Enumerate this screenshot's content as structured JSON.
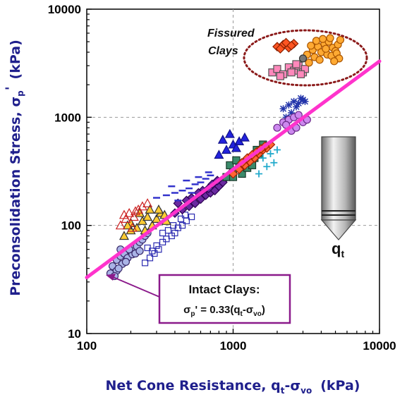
{
  "chart_data": {
    "type": "scatter",
    "scale": "log-log",
    "xlabel": "Net Cone Resistance, q",
    "xlabel_sub1": "t",
    "xlabel_mid": "-σ",
    "xlabel_sub2": "vo",
    "xlabel_unit": "(kPa)",
    "ylabel": "Preconsolidation Stress, σ",
    "ylabel_sub": "p",
    "ylabel_prime": "'",
    "ylabel_unit": "(kPa)",
    "xlim": [
      100,
      10000
    ],
    "ylim": [
      10,
      10000
    ],
    "x_ticks": [
      "100",
      "1000",
      "10000"
    ],
    "y_ticks": [
      "10",
      "100",
      "1000",
      "10000"
    ],
    "x_tick_values": [
      100,
      1000,
      10000
    ],
    "y_tick_values": [
      10,
      100,
      1000,
      10000
    ],
    "grid": "major dashed",
    "trend_line": {
      "equation_coefficient": 0.33,
      "x_start": 100,
      "x_end": 10000,
      "color": "#ff33cc"
    },
    "annotations": {
      "intact_title": "Intact Clays:",
      "intact_eq_lead": "σ",
      "intact_eq_sub": "p",
      "intact_eq_rest": "' = 0.33(q",
      "intact_eq_sub2": "t",
      "intact_eq_mid": "-σ",
      "intact_eq_sub3": "vo",
      "intact_eq_end": ")",
      "fissured_line1": "Fissured",
      "fissured_line2": "Clays",
      "cone_label": "q",
      "cone_label_sub": "t"
    },
    "colors": {
      "axis_label": "#1f1f8c",
      "trend": "#ff33cc",
      "ellipse": "#8b1a1a",
      "box_border": "#8b1a8b"
    },
    "series": [
      {
        "marker": "circle",
        "fill": "#aab4e6",
        "stroke": "#3a2a6a",
        "points": [
          [
            150,
            42
          ],
          [
            160,
            48
          ],
          [
            170,
            52
          ],
          [
            180,
            55
          ],
          [
            160,
            38
          ],
          [
            175,
            44
          ],
          [
            190,
            50
          ],
          [
            200,
            58
          ],
          [
            210,
            62
          ],
          [
            220,
            64
          ],
          [
            230,
            70
          ],
          [
            240,
            74
          ],
          [
            250,
            80
          ],
          [
            185,
            46
          ],
          [
            205,
            54
          ],
          [
            145,
            36
          ],
          [
            165,
            40
          ],
          [
            195,
            60
          ],
          [
            215,
            55
          ],
          [
            260,
            85
          ],
          [
            170,
            60
          ],
          [
            230,
            58
          ],
          [
            155,
            34
          ]
        ]
      },
      {
        "marker": "square-open",
        "fill": "none",
        "stroke": "#2b2bb0",
        "points": [
          [
            250,
            45
          ],
          [
            270,
            50
          ],
          [
            290,
            55
          ],
          [
            310,
            60
          ],
          [
            330,
            70
          ],
          [
            350,
            75
          ],
          [
            380,
            80
          ],
          [
            400,
            85
          ],
          [
            420,
            95
          ],
          [
            450,
            100
          ],
          [
            480,
            110
          ],
          [
            520,
            120
          ],
          [
            300,
            65
          ],
          [
            360,
            90
          ],
          [
            440,
            115
          ],
          [
            280,
            58
          ],
          [
            330,
            85
          ],
          [
            390,
            100
          ],
          [
            470,
            125
          ],
          [
            260,
            62
          ]
        ]
      },
      {
        "marker": "triangle",
        "fill": "#ffcc33",
        "stroke": "#333333",
        "points": [
          [
            180,
            80
          ],
          [
            200,
            90
          ],
          [
            220,
            95
          ],
          [
            240,
            110
          ],
          [
            260,
            120
          ],
          [
            280,
            100
          ],
          [
            300,
            115
          ],
          [
            320,
            130
          ],
          [
            340,
            125
          ],
          [
            230,
            130
          ],
          [
            270,
            140
          ],
          [
            200,
            105
          ],
          [
            250,
            90
          ],
          [
            190,
            100
          ],
          [
            310,
            140
          ],
          [
            350,
            110
          ]
        ]
      },
      {
        "marker": "triangle-open",
        "fill": "none",
        "stroke": "#cc2222",
        "points": [
          [
            170,
            100
          ],
          [
            185,
            115
          ],
          [
            195,
            130
          ],
          [
            210,
            120
          ],
          [
            225,
            140
          ],
          [
            240,
            150
          ],
          [
            205,
            95
          ],
          [
            215,
            135
          ],
          [
            260,
            160
          ],
          [
            180,
            125
          ]
        ]
      },
      {
        "marker": "diamond",
        "fill": "#6a2aa0",
        "stroke": "#2a0050",
        "points": [
          [
            400,
            130
          ],
          [
            450,
            140
          ],
          [
            500,
            150
          ],
          [
            550,
            160
          ],
          [
            600,
            175
          ],
          [
            650,
            190
          ],
          [
            700,
            200
          ],
          [
            750,
            210
          ],
          [
            800,
            230
          ],
          [
            850,
            250
          ],
          [
            420,
            160
          ],
          [
            520,
            180
          ],
          [
            620,
            210
          ],
          [
            720,
            240
          ],
          [
            480,
            170
          ],
          [
            580,
            200
          ],
          [
            680,
            220
          ],
          [
            780,
            260
          ],
          [
            900,
            280
          ],
          [
            950,
            300
          ]
        ]
      },
      {
        "marker": "dash",
        "fill": "#3333cc",
        "stroke": "#3333cc",
        "points": [
          [
            300,
            180
          ],
          [
            350,
            190
          ],
          [
            400,
            200
          ],
          [
            450,
            210
          ],
          [
            500,
            220
          ],
          [
            550,
            240
          ],
          [
            600,
            250
          ],
          [
            650,
            270
          ],
          [
            700,
            290
          ],
          [
            380,
            230
          ],
          [
            480,
            260
          ],
          [
            580,
            280
          ],
          [
            680,
            310
          ],
          [
            420,
            170
          ],
          [
            520,
            200
          ]
        ]
      },
      {
        "marker": "square",
        "fill": "#3a8a6a",
        "stroke": "#1a3a2a",
        "points": [
          [
            900,
            280
          ],
          [
            1000,
            320
          ],
          [
            1100,
            350
          ],
          [
            1200,
            380
          ],
          [
            1300,
            400
          ],
          [
            1400,
            420
          ],
          [
            1500,
            450
          ],
          [
            1000,
            280
          ],
          [
            1150,
            300
          ],
          [
            1250,
            340
          ],
          [
            1350,
            360
          ],
          [
            950,
            360
          ],
          [
            1050,
            400
          ],
          [
            1450,
            500
          ],
          [
            1600,
            560
          ]
        ]
      },
      {
        "marker": "diamond",
        "fill": "#ff6633",
        "stroke": "#a02000",
        "points": [
          [
            1000,
            300
          ],
          [
            1100,
            330
          ],
          [
            1200,
            360
          ],
          [
            1300,
            390
          ],
          [
            1400,
            420
          ],
          [
            1500,
            460
          ],
          [
            1600,
            500
          ],
          [
            1700,
            520
          ],
          [
            1800,
            560
          ],
          [
            1250,
            420
          ],
          [
            1450,
            480
          ],
          [
            1650,
            540
          ],
          [
            1150,
            380
          ],
          [
            1350,
            450
          ],
          [
            1550,
            510
          ]
        ]
      },
      {
        "marker": "triangle",
        "fill": "#2222dd",
        "stroke": "#111188",
        "points": [
          [
            800,
            450
          ],
          [
            900,
            500
          ],
          [
            1000,
            560
          ],
          [
            1100,
            600
          ],
          [
            1200,
            650
          ],
          [
            950,
            700
          ],
          [
            1050,
            520
          ],
          [
            850,
            620
          ]
        ]
      },
      {
        "marker": "cross",
        "fill": "none",
        "stroke": "#22aacc",
        "points": [
          [
            1500,
            300
          ],
          [
            1700,
            350
          ],
          [
            1900,
            380
          ],
          [
            1600,
            420
          ],
          [
            1800,
            460
          ],
          [
            2000,
            500
          ]
        ]
      },
      {
        "marker": "star",
        "fill": "none",
        "stroke": "#2233aa",
        "points": [
          [
            2200,
            1200
          ],
          [
            2400,
            1300
          ],
          [
            2600,
            1400
          ],
          [
            2800,
            1350
          ],
          [
            3000,
            1450
          ],
          [
            2300,
            1000
          ],
          [
            2500,
            1100
          ],
          [
            2700,
            1250
          ],
          [
            2900,
            1500
          ],
          [
            3100,
            1400
          ]
        ]
      },
      {
        "marker": "circle",
        "fill": "#cc88ee",
        "stroke": "#6a2a8a",
        "points": [
          [
            2000,
            800
          ],
          [
            2200,
            900
          ],
          [
            2400,
            950
          ],
          [
            2600,
            1000
          ],
          [
            2800,
            1050
          ],
          [
            3000,
            900
          ],
          [
            3200,
            950
          ],
          [
            2500,
            750
          ],
          [
            2300,
            850
          ],
          [
            2700,
            800
          ]
        ]
      },
      {
        "marker": "square",
        "fill": "#ff88bb",
        "stroke": "#555555",
        "points": [
          [
            1850,
            2600
          ],
          [
            2000,
            2800
          ],
          [
            2200,
            2500
          ],
          [
            2400,
            2900
          ],
          [
            2600,
            2700
          ],
          [
            2800,
            3000
          ],
          [
            3000,
            2600
          ],
          [
            2100,
            2400
          ],
          [
            2500,
            2600
          ],
          [
            2700,
            3100
          ],
          [
            3100,
            2800
          ],
          [
            2900,
            2500
          ]
        ]
      },
      {
        "marker": "diamond",
        "fill": "#ff5522",
        "stroke": "#8a2000",
        "points": [
          [
            2000,
            4500
          ],
          [
            2200,
            4700
          ],
          [
            2400,
            4400
          ],
          [
            2600,
            4800
          ],
          [
            2100,
            4300
          ],
          [
            2300,
            4900
          ],
          [
            2500,
            4600
          ]
        ]
      },
      {
        "marker": "circle",
        "fill": "#ffaa33",
        "stroke": "#aa5500",
        "points": [
          [
            3200,
            3800
          ],
          [
            3500,
            4200
          ],
          [
            3800,
            4500
          ],
          [
            4200,
            4800
          ],
          [
            4500,
            5000
          ],
          [
            4800,
            4400
          ],
          [
            5200,
            4700
          ],
          [
            3600,
            3600
          ],
          [
            4000,
            4000
          ],
          [
            4400,
            3800
          ],
          [
            5000,
            4100
          ],
          [
            3400,
            4600
          ],
          [
            4600,
            5400
          ],
          [
            5400,
            5200
          ],
          [
            3900,
            3400
          ],
          [
            4300,
            4300
          ],
          [
            4700,
            3700
          ],
          [
            5100,
            3900
          ],
          [
            3700,
            5100
          ],
          [
            4100,
            5300
          ],
          [
            3300,
            3200
          ],
          [
            5300,
            3500
          ],
          [
            4900,
            3300
          ]
        ]
      },
      {
        "marker": "circle",
        "fill": "#777777",
        "stroke": "#333333",
        "points": [
          [
            3000,
            3500
          ]
        ]
      }
    ]
  }
}
